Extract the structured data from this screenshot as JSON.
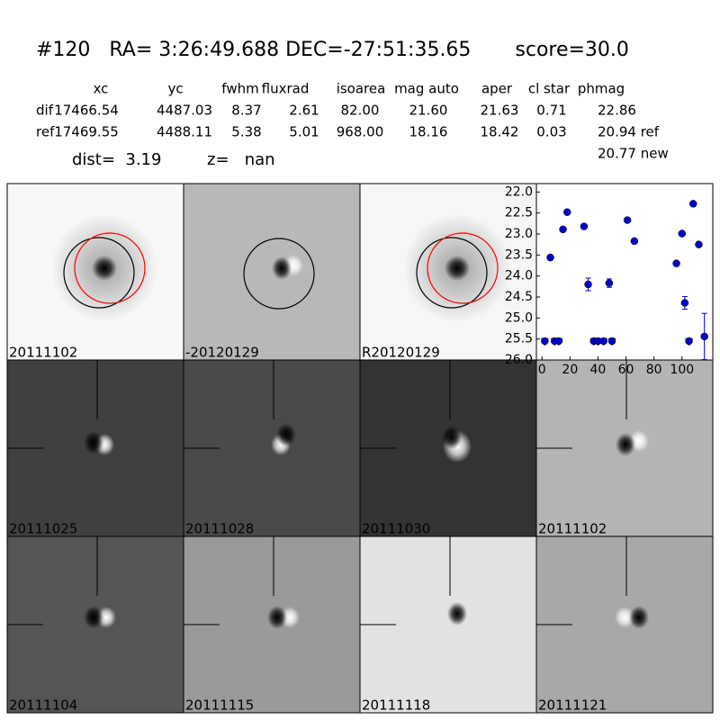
{
  "header": {
    "title": "#120   RA= 3:26:49.688 DEC=-27:51:35.65       score=30.0"
  },
  "table": {
    "columns": [
      "xc",
      "yc",
      "fwhm",
      "fluxrad",
      "isoarea",
      "mag auto",
      "aper",
      "cl star",
      "phmag"
    ],
    "rows": [
      [
        "dif",
        "17466.54",
        "4487.03",
        "8.37",
        "2.61",
        "82.00",
        "21.60",
        "21.63",
        "0.71",
        "22.86"
      ],
      [
        "ref",
        "17469.55",
        "4488.11",
        "5.38",
        "5.01",
        "968.00",
        "18.16",
        "18.42",
        "0.03",
        "20.94 ref"
      ]
    ],
    "extra": "20.77 new",
    "dist": "dist=  3.19",
    "z": "z=   nan"
  },
  "panels": [
    {
      "label": "20111102"
    },
    {
      "label": "-20120129"
    },
    {
      "label": "R20120129"
    },
    {
      "label": "20111025"
    },
    {
      "label": "20111028"
    },
    {
      "label": "20111030"
    },
    {
      "label": "20111102",
      "highlight": true
    },
    {
      "label": "20111104"
    },
    {
      "label": "20111115"
    },
    {
      "label": "20111118"
    },
    {
      "label": "20111121"
    }
  ],
  "chart_data": {
    "type": "scatter",
    "xlim": [
      -4,
      122
    ],
    "xticks": [
      0,
      20,
      40,
      60,
      80,
      100
    ],
    "ylim": [
      21.8,
      26.0
    ],
    "invert_y": true,
    "yticks": [
      {
        "value": 22,
        "label": "22.0"
      },
      {
        "value": 22.5,
        "label": "22.5"
      },
      {
        "value": 23,
        "label": "23.0"
      },
      {
        "value": 23.5,
        "label": "23.5"
      },
      {
        "value": 24,
        "label": "24.0"
      },
      {
        "value": 24.5,
        "label": "24.5"
      },
      {
        "value": 25,
        "label": "25.0"
      },
      {
        "value": 25.5,
        "label": "25.5"
      },
      {
        "value": 26,
        "label": "26.0"
      }
    ],
    "series": [
      {
        "color": "#0000cc",
        "marker": "circle",
        "x": [
          6,
          15,
          18,
          30,
          33,
          48,
          61,
          66,
          96,
          100,
          102,
          108,
          112,
          116
        ],
        "values": [
          23.56,
          22.89,
          22.48,
          22.82,
          24.2,
          24.17,
          22.67,
          23.17,
          23.7,
          22.99,
          24.64,
          22.28,
          23.25,
          25.44
        ],
        "errors": [
          0.03,
          0.03,
          0.03,
          0.03,
          0.15,
          0.1,
          0.03,
          0.03,
          0.03,
          0.03,
          0.15,
          0.03,
          0.03,
          0.55
        ]
      },
      {
        "color": "#0000cc",
        "marker": "limit",
        "x": [
          2,
          9,
          12,
          37,
          40,
          44,
          50,
          105
        ],
        "values": [
          25.55,
          25.55,
          25.55,
          25.55,
          25.55,
          25.55,
          25.55,
          25.55
        ]
      }
    ]
  }
}
